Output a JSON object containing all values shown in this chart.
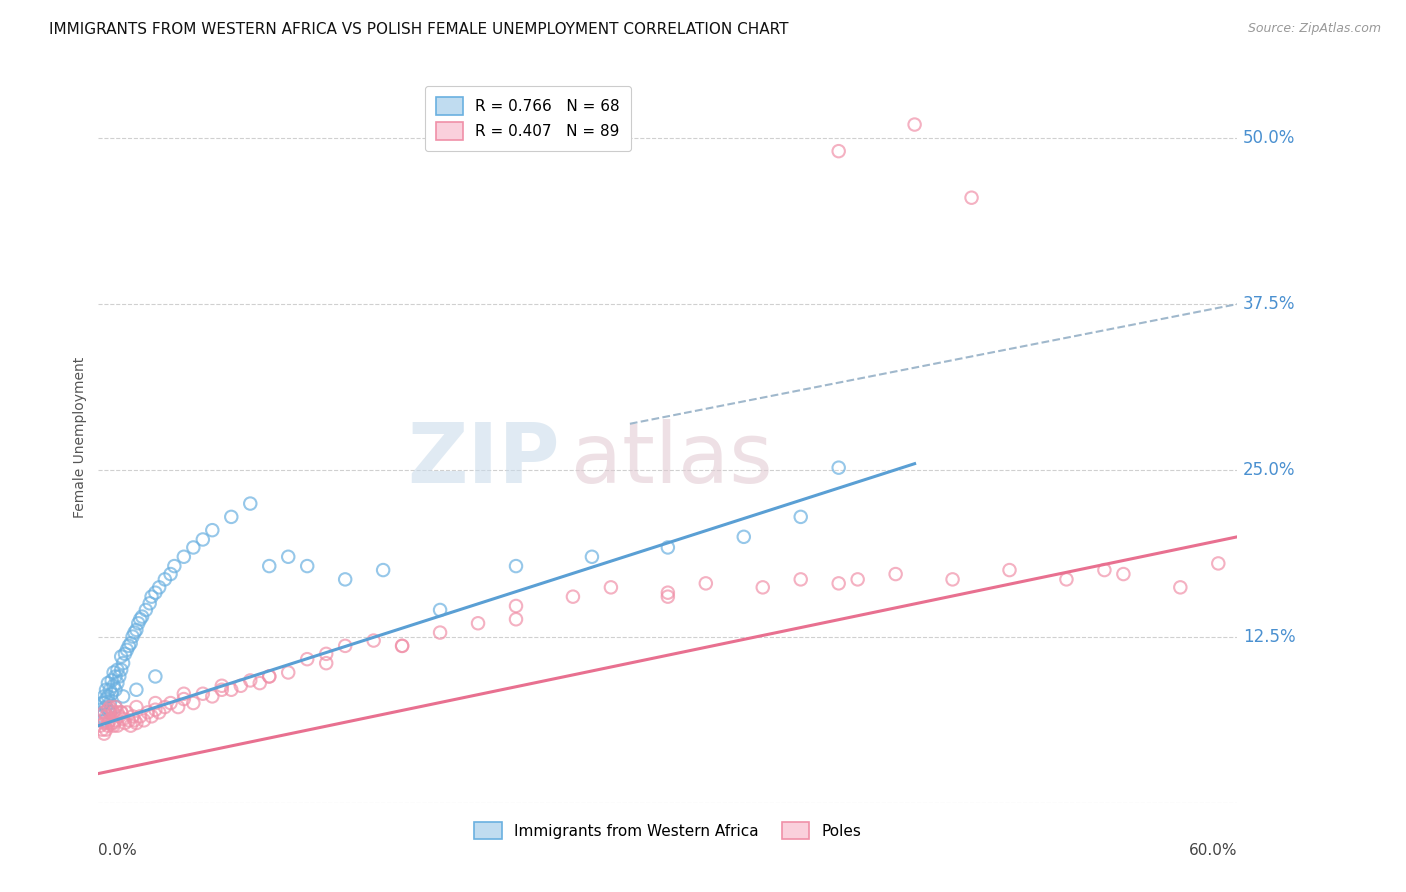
{
  "title": "IMMIGRANTS FROM WESTERN AFRICA VS POLISH FEMALE UNEMPLOYMENT CORRELATION CHART",
  "source": "Source: ZipAtlas.com",
  "ylabel": "Female Unemployment",
  "xlim": [
    0.0,
    0.6
  ],
  "ylim": [
    0.0,
    0.55
  ],
  "legend_line1": "R = 0.766   N = 68",
  "legend_line2": "R = 0.407   N = 89",
  "legend_color1": "#8dc4e8",
  "legend_color2": "#f4a8bc",
  "blue_scatter_x": [
    0.001,
    0.002,
    0.002,
    0.003,
    0.003,
    0.003,
    0.004,
    0.004,
    0.004,
    0.005,
    0.005,
    0.005,
    0.006,
    0.006,
    0.007,
    0.007,
    0.008,
    0.008,
    0.009,
    0.009,
    0.01,
    0.01,
    0.011,
    0.012,
    0.012,
    0.013,
    0.014,
    0.015,
    0.016,
    0.017,
    0.018,
    0.019,
    0.02,
    0.021,
    0.022,
    0.023,
    0.025,
    0.027,
    0.028,
    0.03,
    0.032,
    0.035,
    0.038,
    0.04,
    0.045,
    0.05,
    0.055,
    0.06,
    0.07,
    0.08,
    0.09,
    0.1,
    0.11,
    0.13,
    0.15,
    0.18,
    0.22,
    0.26,
    0.3,
    0.34,
    0.37,
    0.39,
    0.003,
    0.006,
    0.009,
    0.013,
    0.02,
    0.03
  ],
  "blue_scatter_y": [
    0.07,
    0.065,
    0.075,
    0.068,
    0.075,
    0.08,
    0.072,
    0.078,
    0.085,
    0.07,
    0.08,
    0.09,
    0.075,
    0.085,
    0.082,
    0.092,
    0.088,
    0.098,
    0.085,
    0.095,
    0.09,
    0.1,
    0.095,
    0.1,
    0.11,
    0.105,
    0.112,
    0.115,
    0.118,
    0.12,
    0.125,
    0.128,
    0.13,
    0.135,
    0.138,
    0.14,
    0.145,
    0.15,
    0.155,
    0.158,
    0.162,
    0.168,
    0.172,
    0.178,
    0.185,
    0.192,
    0.198,
    0.205,
    0.215,
    0.225,
    0.178,
    0.185,
    0.178,
    0.168,
    0.175,
    0.145,
    0.178,
    0.185,
    0.192,
    0.2,
    0.215,
    0.252,
    0.062,
    0.068,
    0.072,
    0.08,
    0.085,
    0.095
  ],
  "pink_scatter_x": [
    0.001,
    0.002,
    0.003,
    0.003,
    0.004,
    0.004,
    0.005,
    0.005,
    0.006,
    0.006,
    0.007,
    0.007,
    0.008,
    0.008,
    0.009,
    0.009,
    0.01,
    0.01,
    0.011,
    0.012,
    0.013,
    0.014,
    0.015,
    0.016,
    0.017,
    0.018,
    0.019,
    0.02,
    0.022,
    0.024,
    0.026,
    0.028,
    0.03,
    0.032,
    0.035,
    0.038,
    0.042,
    0.045,
    0.05,
    0.055,
    0.06,
    0.065,
    0.07,
    0.075,
    0.08,
    0.085,
    0.09,
    0.1,
    0.11,
    0.12,
    0.13,
    0.145,
    0.16,
    0.18,
    0.2,
    0.22,
    0.25,
    0.27,
    0.3,
    0.32,
    0.35,
    0.37,
    0.39,
    0.42,
    0.45,
    0.48,
    0.51,
    0.54,
    0.57,
    0.003,
    0.005,
    0.008,
    0.012,
    0.02,
    0.03,
    0.045,
    0.065,
    0.09,
    0.12,
    0.16,
    0.22,
    0.3,
    0.4,
    0.53,
    0.59,
    0.39,
    0.43,
    0.46
  ],
  "pink_scatter_y": [
    0.058,
    0.055,
    0.06,
    0.068,
    0.055,
    0.065,
    0.06,
    0.07,
    0.062,
    0.072,
    0.06,
    0.07,
    0.058,
    0.068,
    0.062,
    0.072,
    0.058,
    0.068,
    0.065,
    0.068,
    0.063,
    0.06,
    0.068,
    0.062,
    0.058,
    0.065,
    0.062,
    0.06,
    0.065,
    0.062,
    0.068,
    0.065,
    0.07,
    0.068,
    0.072,
    0.075,
    0.072,
    0.078,
    0.075,
    0.082,
    0.08,
    0.085,
    0.085,
    0.088,
    0.092,
    0.09,
    0.095,
    0.098,
    0.108,
    0.112,
    0.118,
    0.122,
    0.118,
    0.128,
    0.135,
    0.148,
    0.155,
    0.162,
    0.158,
    0.165,
    0.162,
    0.168,
    0.165,
    0.172,
    0.168,
    0.175,
    0.168,
    0.172,
    0.162,
    0.052,
    0.058,
    0.06,
    0.068,
    0.072,
    0.075,
    0.082,
    0.088,
    0.095,
    0.105,
    0.118,
    0.138,
    0.155,
    0.168,
    0.175,
    0.18,
    0.49,
    0.51,
    0.455
  ],
  "blue_line_x": [
    0.0,
    0.43
  ],
  "blue_line_y": [
    0.058,
    0.255
  ],
  "blue_dash_line_x": [
    0.28,
    0.6
  ],
  "blue_dash_line_y": [
    0.285,
    0.375
  ],
  "pink_line_x": [
    0.0,
    0.6
  ],
  "pink_line_y": [
    0.022,
    0.2
  ],
  "scatter_size": 80,
  "scatter_alpha": 0.7,
  "grid_color": "#d0d0d0",
  "grid_linestyle": "--",
  "background_color": "#ffffff"
}
